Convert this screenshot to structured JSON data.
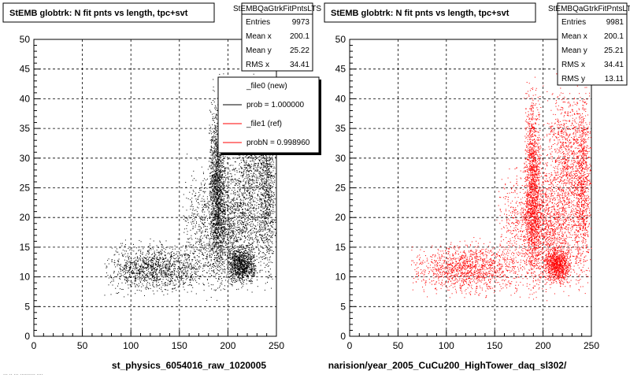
{
  "chart_data": [
    {
      "type": "scatter",
      "title": "StEMB globtrk: N fit pnts vs length, tpc+svt",
      "xlabel": "st_physics_6054016_raw_1020005",
      "ylabel": "",
      "xlim": [
        0,
        250
      ],
      "ylim": [
        0,
        50
      ],
      "x_ticks": [
        "0",
        "50",
        "100",
        "150",
        "200",
        "250"
      ],
      "y_ticks": [
        "0",
        "5",
        "10",
        "15",
        "20",
        "25",
        "30",
        "35",
        "40",
        "45",
        "50"
      ],
      "grid": true,
      "marker_color": "#000000",
      "stats": {
        "header": "StEMBQaGtrkFitPntsLTS",
        "rows": [
          {
            "label": "Entries",
            "value": "9973"
          },
          {
            "label": "Mean x",
            "value": "200.1"
          },
          {
            "label": "Mean y",
            "value": "25.22"
          },
          {
            "label": "RMS x",
            "value": "34.41"
          }
        ]
      },
      "legend": {
        "placement": "top-right",
        "entries": [
          {
            "label": "_file0 (new)",
            "color": "#ffffff"
          },
          {
            "label": "prob = 1.000000",
            "color": "#000000"
          },
          {
            "label": "_file1 (ref)",
            "color": "#ff0000"
          },
          {
            "label": "probN = 0.998960",
            "color": "#ff0000"
          }
        ]
      },
      "clusters": [
        {
          "x": [
            180,
            198
          ],
          "y": [
            5,
            46
          ],
          "n": 1500
        },
        {
          "x": [
            198,
            230
          ],
          "y": [
            8,
            16
          ],
          "n": 900
        },
        {
          "x": [
            230,
            250
          ],
          "y": [
            5,
            46
          ],
          "n": 800
        },
        {
          "x": [
            150,
            250
          ],
          "y": [
            5,
            32
          ],
          "n": 2000
        },
        {
          "x": [
            70,
            180
          ],
          "y": [
            6,
            17
          ],
          "n": 1300
        },
        {
          "x": [
            198,
            250
          ],
          "y": [
            15,
            46
          ],
          "n": 900
        }
      ]
    },
    {
      "type": "scatter",
      "title": "StEMB globtrk: N fit pnts vs length, tpc+svt",
      "xlabel": "narision/year_2005_CuCu200_HighTower_daq_sl302/",
      "ylabel": "",
      "xlim": [
        0,
        250
      ],
      "ylim": [
        0,
        50
      ],
      "x_ticks": [
        "0",
        "50",
        "100",
        "150",
        "200",
        "250"
      ],
      "y_ticks": [
        "0",
        "5",
        "10",
        "15",
        "20",
        "25",
        "30",
        "35",
        "40",
        "45",
        "50"
      ],
      "grid": true,
      "marker_color": "#ff0000",
      "stats": {
        "header": "StEMBQaGtrkFitPntsLTS",
        "rows": [
          {
            "label": "Entries",
            "value": "9981"
          },
          {
            "label": "Mean x",
            "value": "200.1"
          },
          {
            "label": "Mean y",
            "value": "25.21"
          },
          {
            "label": "RMS x",
            "value": "34.41"
          },
          {
            "label": "RMS y",
            "value": "13.11"
          }
        ]
      },
      "clusters": [
        {
          "x": [
            180,
            198
          ],
          "y": [
            5,
            46
          ],
          "n": 1500
        },
        {
          "x": [
            198,
            230
          ],
          "y": [
            8,
            16
          ],
          "n": 900
        },
        {
          "x": [
            230,
            250
          ],
          "y": [
            5,
            46
          ],
          "n": 800
        },
        {
          "x": [
            150,
            250
          ],
          "y": [
            5,
            32
          ],
          "n": 2000
        },
        {
          "x": [
            60,
            180
          ],
          "y": [
            6,
            17
          ],
          "n": 1300
        },
        {
          "x": [
            198,
            250
          ],
          "y": [
            15,
            46
          ],
          "n": 900
        }
      ]
    }
  ],
  "footer": {
    "left_text": "... .. ... .......... ...."
  }
}
